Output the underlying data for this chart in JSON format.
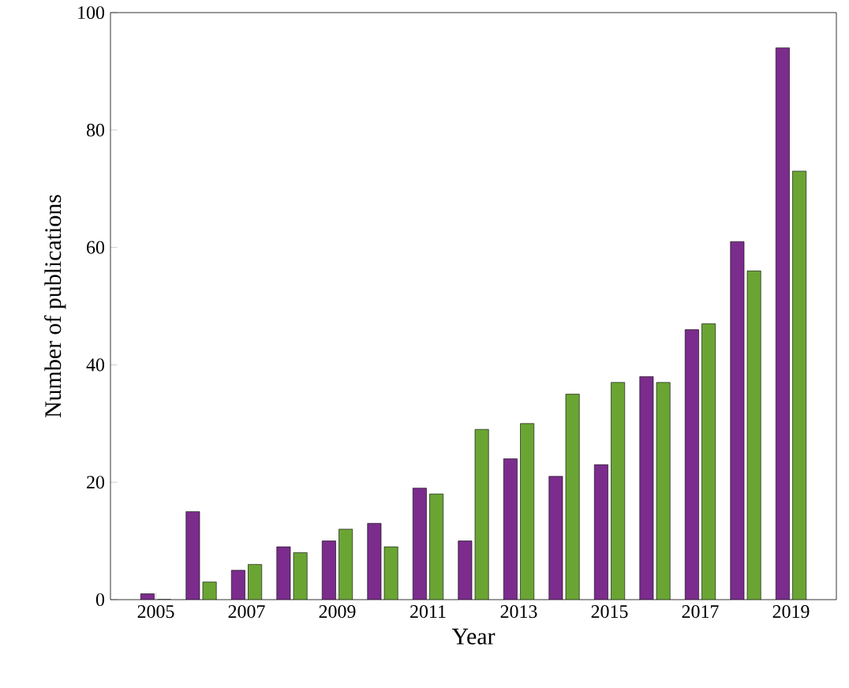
{
  "chart_data": {
    "type": "bar",
    "xlabel": "Year",
    "ylabel": "Number of publications",
    "x": [
      2005,
      2006,
      2007,
      2008,
      2009,
      2010,
      2011,
      2012,
      2013,
      2014,
      2015,
      2016,
      2017,
      2018,
      2019
    ],
    "series": [
      {
        "color": "#7b2c8c",
        "values": [
          1,
          15,
          5,
          9,
          10,
          13,
          19,
          10,
          24,
          21,
          23,
          38,
          46,
          61,
          94
        ]
      },
      {
        "color": "#6aa534",
        "values": [
          0,
          3,
          6,
          8,
          12,
          9,
          18,
          29,
          30,
          35,
          37,
          37,
          47,
          56,
          73
        ]
      }
    ],
    "xlim": [
      2004,
      2020
    ],
    "xticks": [
      2005,
      2007,
      2009,
      2011,
      2013,
      2015,
      2017,
      2019
    ],
    "ylim": [
      0,
      100
    ],
    "yticks": [
      0,
      20,
      40,
      60,
      80,
      100
    ]
  }
}
